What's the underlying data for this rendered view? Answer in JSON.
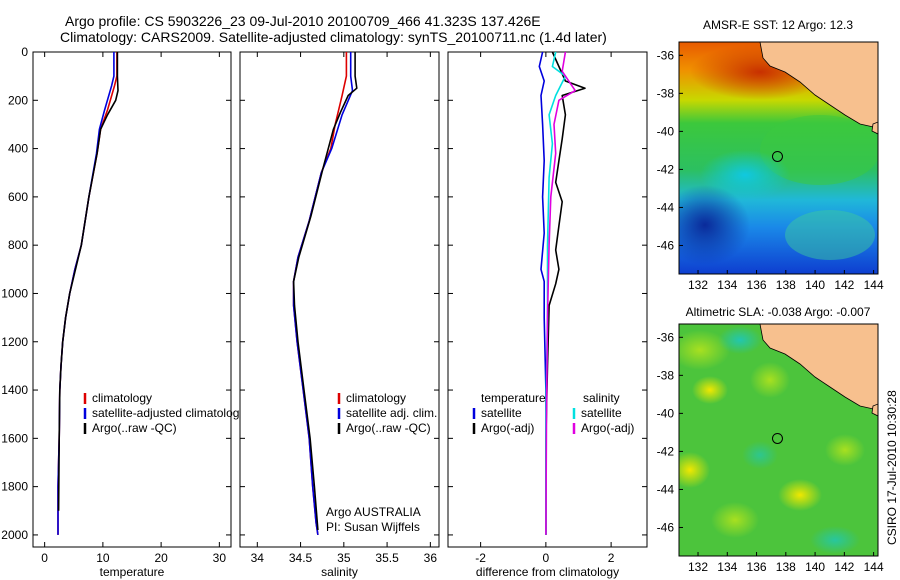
{
  "figure": {
    "title_line1": "Argo profile: CS 5903226_23 09-Jul-2010 20100709_466 41.323S 137.426E",
    "title_line2": "Climatology: CARS2009. Satellite-adjusted climatology: synTS_20100711.nc (1.4d later)",
    "side_label": "CSIRO 17-Jul-2010 10:30:28"
  },
  "colors": {
    "red": "#dd0000",
    "blue": "#0000dd",
    "black": "#000000",
    "cyan": "#00e0e0",
    "magenta": "#e000e0",
    "land": "#f7c08e"
  },
  "chart_data": [
    {
      "type": "line",
      "name": "temperature",
      "xlabel": "temperature",
      "xlim": [
        -2,
        32
      ],
      "xticks": [
        0,
        10,
        20,
        30
      ],
      "ylim": [
        0,
        2050
      ],
      "yticks": [
        0,
        200,
        400,
        600,
        800,
        1000,
        1200,
        1400,
        1600,
        1800,
        2000
      ],
      "y_reversed": true,
      "legend": [
        "climatology",
        "satellite-adjusted climatology",
        "Argo(..raw -QC)"
      ],
      "series": [
        {
          "name": "climatology",
          "color": "red",
          "x": [
            12.4,
            12.4,
            12.0,
            10.8,
            9.6,
            9.0,
            7.6,
            6.3,
            5.2,
            4.3,
            3.6,
            3.1,
            2.8,
            2.6,
            2.5,
            2.3,
            2.3
          ],
          "y": [
            0,
            100,
            140,
            240,
            320,
            420,
            600,
            800,
            900,
            1000,
            1100,
            1200,
            1300,
            1400,
            1600,
            1800,
            2000
          ]
        },
        {
          "name": "satellite-adjusted climatology",
          "color": "blue",
          "x": [
            11.9,
            11.9,
            11.5,
            10.3,
            9.4,
            8.9,
            7.6,
            6.3,
            5.2,
            4.3,
            3.6,
            3.1,
            2.8,
            2.6,
            2.5,
            2.3,
            2.3
          ],
          "y": [
            0,
            100,
            140,
            240,
            320,
            420,
            600,
            800,
            900,
            1000,
            1100,
            1200,
            1300,
            1400,
            1600,
            1800,
            2000
          ]
        },
        {
          "name": "Argo(..raw -QC)",
          "color": "black",
          "x": [
            12.5,
            12.5,
            12.6,
            12.2,
            10.8,
            9.6,
            9.0,
            7.6,
            6.3,
            5.3,
            4.3,
            3.6,
            3.1,
            2.8,
            2.6,
            2.5,
            2.4
          ],
          "y": [
            0,
            100,
            160,
            200,
            260,
            320,
            420,
            600,
            800,
            900,
            1000,
            1100,
            1200,
            1300,
            1400,
            1600,
            1900
          ]
        }
      ]
    },
    {
      "type": "line",
      "name": "salinity",
      "xlabel": "salinity",
      "xlim": [
        33.8,
        36.1
      ],
      "xticks": [
        34,
        34.5,
        35,
        35.5,
        36
      ],
      "ylim": [
        0,
        2050
      ],
      "y_reversed": true,
      "legend": [
        "climatology",
        "satellite adj. clim.",
        "Argo(..raw -QC)"
      ],
      "annotation": [
        "Argo AUSTRALIA",
        "PI: Susan Wijffels"
      ],
      "series": [
        {
          "name": "climatology",
          "color": "red",
          "x": [
            35.03,
            35.03,
            34.98,
            34.9,
            34.85,
            34.74,
            34.6,
            34.47,
            34.42,
            34.42,
            34.46,
            34.53,
            34.6,
            34.64,
            34.68,
            34.7
          ],
          "y": [
            0,
            100,
            180,
            300,
            400,
            500,
            700,
            850,
            950,
            1050,
            1200,
            1400,
            1600,
            1800,
            1950,
            2000
          ]
        },
        {
          "name": "satellite adj. clim.",
          "color": "blue",
          "x": [
            35.08,
            35.08,
            35.1,
            34.98,
            34.86,
            34.74,
            34.6,
            34.47,
            34.42,
            34.42,
            34.46,
            34.53,
            34.6,
            34.64,
            34.68,
            34.7
          ],
          "y": [
            0,
            100,
            160,
            260,
            400,
            500,
            700,
            850,
            950,
            1050,
            1200,
            1400,
            1600,
            1800,
            1950,
            2000
          ]
        },
        {
          "name": "Argo(..raw -QC)",
          "color": "black",
          "x": [
            35.13,
            35.13,
            35.15,
            35.05,
            34.96,
            34.88,
            34.76,
            34.62,
            34.48,
            34.42,
            34.43,
            34.47,
            34.54,
            34.61,
            34.66,
            34.7
          ],
          "y": [
            0,
            100,
            150,
            180,
            250,
            320,
            480,
            680,
            850,
            950,
            1050,
            1200,
            1400,
            1600,
            1800,
            1980
          ]
        }
      ]
    },
    {
      "type": "line",
      "name": "difference",
      "xlabel": "difference from climatology",
      "xlim": [
        -3,
        3.1
      ],
      "xticks": [
        -2,
        0,
        2
      ],
      "ylim": [
        0,
        2050
      ],
      "y_reversed": true,
      "legend_left_title": "temperature",
      "legend_right_title": "salinity",
      "legend": [
        "satellite",
        "Argo(-adj)",
        "satellite",
        "Argo(-adj)"
      ],
      "series": [
        {
          "name": "temperature satellite",
          "color": "blue",
          "x": [
            -0.1,
            -0.2,
            -0.05,
            -0.15,
            -0.1,
            -0.05,
            -0.1,
            -0.05,
            -0.15,
            -0.05,
            -0.05,
            0,
            0,
            0
          ],
          "y": [
            0,
            60,
            120,
            180,
            300,
            450,
            600,
            750,
            900,
            950,
            1100,
            1400,
            1700,
            2000
          ]
        },
        {
          "name": "temperature Argo(-adj)",
          "color": "black",
          "x": [
            0.2,
            0.6,
            1.2,
            0.5,
            0.6,
            0.5,
            0.4,
            0.3,
            0.5,
            0.4,
            0.3,
            0.4,
            0.3,
            0.1,
            0.05,
            0,
            0
          ],
          "y": [
            0,
            120,
            150,
            180,
            260,
            360,
            450,
            540,
            620,
            720,
            820,
            900,
            960,
            1050,
            1300,
            1600,
            2000
          ]
        },
        {
          "name": "salinity satellite",
          "color": "cyan",
          "x": [
            0.3,
            0.2,
            0.6,
            0.3,
            0.1,
            0.2,
            0.1,
            0.05,
            0.05,
            0,
            0
          ],
          "y": [
            0,
            60,
            100,
            180,
            260,
            380,
            520,
            800,
            1100,
            1500,
            2000
          ]
        },
        {
          "name": "salinity Argo(-adj)",
          "color": "magenta",
          "x": [
            0.6,
            0.5,
            0.9,
            0.4,
            0.25,
            0.3,
            0.15,
            0.1,
            0.05,
            0.02,
            0
          ],
          "y": [
            0,
            80,
            160,
            200,
            300,
            420,
            600,
            800,
            1100,
            1500,
            2000
          ]
        }
      ]
    }
  ],
  "maps": [
    {
      "title": "AMSR-E SST: 12  Argo: 12.3",
      "xlim": [
        130.7,
        144.3
      ],
      "ylim": [
        -47.5,
        -35.3
      ],
      "xticks": [
        132,
        134,
        136,
        138,
        140,
        142,
        144
      ],
      "yticks": [
        -36,
        -38,
        -40,
        -42,
        -44,
        -46
      ],
      "marker": [
        137.43,
        -41.32
      ]
    },
    {
      "title": "Altimetric SLA: -0.038  Argo: -0.007",
      "xlim": [
        130.7,
        144.3
      ],
      "ylim": [
        -47.5,
        -35.3
      ],
      "xticks": [
        132,
        134,
        136,
        138,
        140,
        142,
        144
      ],
      "yticks": [
        -36,
        -38,
        -40,
        -42,
        -44,
        -46
      ],
      "marker": [
        137.43,
        -41.32
      ]
    }
  ]
}
